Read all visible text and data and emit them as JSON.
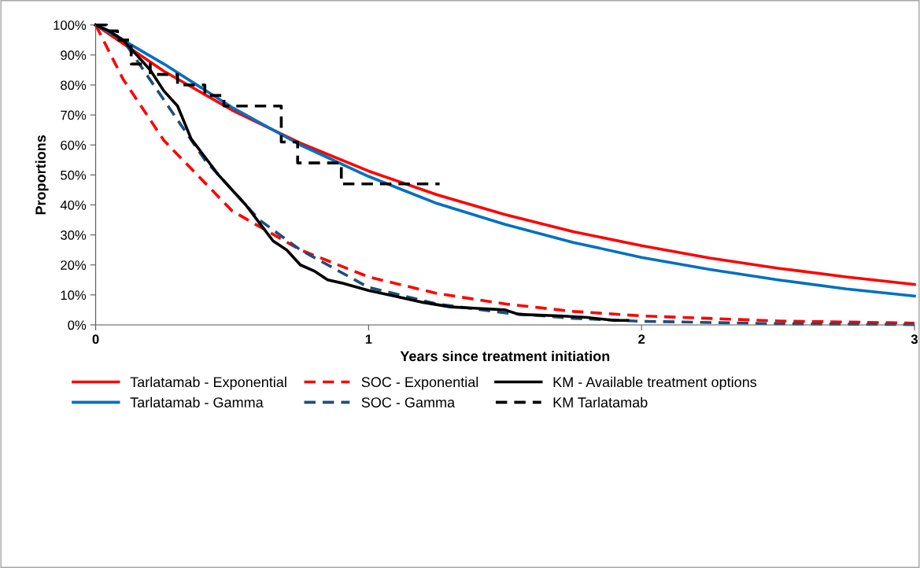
{
  "chart_data": {
    "type": "line",
    "xlabel": "Years since treatment initiation",
    "ylabel": "Proportions",
    "xlim": [
      0,
      3
    ],
    "xticks": [
      0,
      1,
      2,
      3
    ],
    "ylim": [
      0,
      100
    ],
    "yticks": [
      {
        "value": 0,
        "label": "0%"
      },
      {
        "value": 10,
        "label": "10%"
      },
      {
        "value": 20,
        "label": "20%"
      },
      {
        "value": 30,
        "label": "30%"
      },
      {
        "value": 40,
        "label": "40%"
      },
      {
        "value": 50,
        "label": "50%"
      },
      {
        "value": 60,
        "label": "60%"
      },
      {
        "value": 70,
        "label": "70%"
      },
      {
        "value": 80,
        "label": "80%"
      },
      {
        "value": 90,
        "label": "90%"
      },
      {
        "value": 100,
        "label": "100%"
      }
    ],
    "grid": false,
    "legend": "bottom",
    "marker": "none",
    "series": [
      {
        "name": "Tarlatamab - Exponential",
        "color": "#ff0000",
        "line_style": "solid",
        "x": [
          0,
          0.25,
          0.5,
          0.75,
          1,
          1.25,
          1.5,
          1.75,
          2,
          2.25,
          2.5,
          2.75,
          3
        ],
        "values": [
          100,
          84.6,
          71.6,
          60.6,
          51.3,
          43.4,
          36.8,
          31.1,
          26.4,
          22.3,
          18.9,
          16.0,
          13.5
        ]
      },
      {
        "name": "Tarlatamab - Gamma",
        "color": "#0070c0",
        "line_style": "solid",
        "x": [
          0,
          0.1,
          0.25,
          0.5,
          0.75,
          1,
          1.25,
          1.5,
          1.75,
          2,
          2.25,
          2.5,
          2.75,
          3
        ],
        "values": [
          100,
          95,
          87,
          72.5,
          60,
          49.5,
          40.5,
          33.5,
          27.5,
          22.5,
          18.5,
          15,
          12,
          9.6
        ]
      },
      {
        "name": "SOC - Exponential",
        "color": "#ff0000",
        "line_style": "dashed",
        "x": [
          0,
          0.1,
          0.25,
          0.5,
          0.75,
          1,
          1.25,
          1.5,
          1.75,
          2,
          2.5,
          3
        ],
        "values": [
          100,
          82,
          61.5,
          38,
          25,
          16,
          10.5,
          7,
          4.5,
          3,
          1.3,
          0.6
        ]
      },
      {
        "name": "SOC - Gamma",
        "color": "#1f4e79",
        "line_style": "dashed",
        "x": [
          0,
          0.1,
          0.25,
          0.4,
          0.5,
          0.6,
          0.75,
          1,
          1.25,
          1.5,
          1.75,
          2,
          2.5,
          3
        ],
        "values": [
          100,
          95,
          75,
          55,
          45,
          35,
          25,
          12.5,
          7,
          4,
          2.2,
          1.2,
          0.4,
          0.1
        ]
      },
      {
        "name": "KM - Available treatment options",
        "color": "#000000",
        "line_style": "solid",
        "x": [
          0,
          0.05,
          0.1,
          0.15,
          0.2,
          0.25,
          0.3,
          0.35,
          0.4,
          0.45,
          0.5,
          0.55,
          0.6,
          0.65,
          0.7,
          0.75,
          0.8,
          0.85,
          0.9,
          1,
          1.1,
          1.2,
          1.3,
          1.4,
          1.5,
          1.55,
          1.7,
          1.8,
          1.9,
          1.95
        ],
        "values": [
          100,
          98,
          95,
          90,
          85,
          78,
          73,
          62,
          56,
          50,
          45,
          40,
          34,
          28,
          25,
          20,
          18,
          15,
          14,
          11.5,
          9.5,
          7.5,
          6,
          5.5,
          5,
          3.5,
          3,
          2.5,
          1.5,
          1.5
        ]
      },
      {
        "name": "KM Tarlatamab",
        "type": "step",
        "color": "#000000",
        "line_style": "dashed",
        "x": [
          0,
          0.04,
          0.08,
          0.13,
          0.2,
          0.3,
          0.4,
          0.47,
          0.68,
          0.74,
          0.9,
          1.26
        ],
        "values": [
          100,
          98,
          95,
          87,
          83.5,
          80,
          76.5,
          73,
          61,
          54,
          47,
          47
        ]
      }
    ]
  }
}
